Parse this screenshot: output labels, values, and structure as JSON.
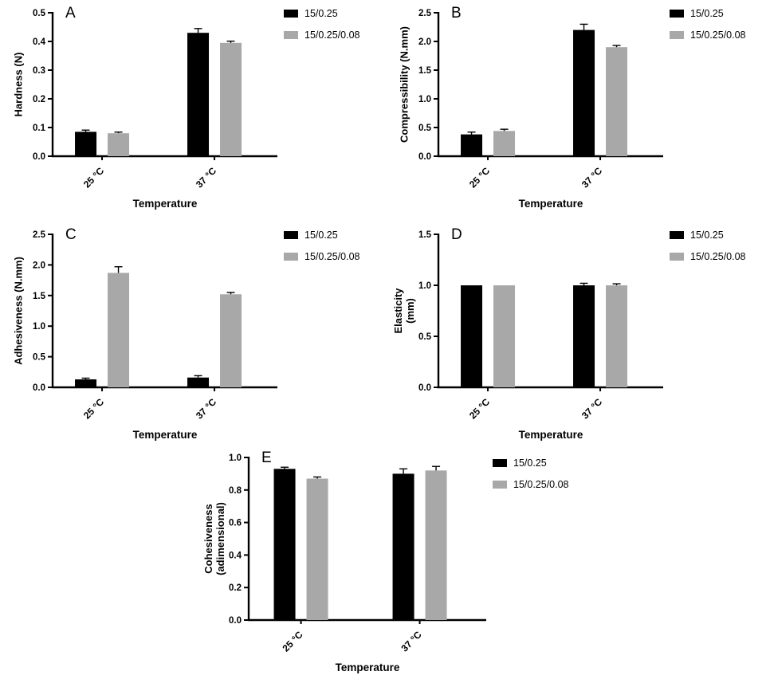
{
  "figure": {
    "background": "#ffffff",
    "series_colors": {
      "black": "#000000",
      "gray": "#a8a8a8"
    }
  },
  "chart_data": [
    {
      "id": "A",
      "type": "bar",
      "panel_label": "A",
      "title": "",
      "xlabel": "Temperature",
      "ylabel_lines": [
        "Hardness (N)"
      ],
      "ylim": [
        0,
        0.5
      ],
      "yticks": [
        "0.0",
        "0.1",
        "0.2",
        "0.3",
        "0.4",
        "0.5"
      ],
      "categories": [
        "25 °C",
        "37 °C"
      ],
      "legend_position": "right-top",
      "grid": false,
      "series": [
        {
          "name": "15/0.25",
          "color": "#000000",
          "values": [
            0.085,
            0.43
          ],
          "errors": [
            0.006,
            0.015
          ]
        },
        {
          "name": "15/0.25/0.08",
          "color": "#a8a8a8",
          "values": [
            0.08,
            0.395
          ],
          "errors": [
            0.004,
            0.006
          ]
        }
      ]
    },
    {
      "id": "B",
      "type": "bar",
      "panel_label": "B",
      "title": "",
      "xlabel": "Temperature",
      "ylabel_lines": [
        "Compressibility (N.mm)"
      ],
      "ylim": [
        0,
        2.5
      ],
      "yticks": [
        "0.0",
        "0.5",
        "1.0",
        "1.5",
        "2.0",
        "2.5"
      ],
      "categories": [
        "25 °C",
        "37 °C"
      ],
      "legend_position": "right-top",
      "grid": false,
      "series": [
        {
          "name": "15/0.25",
          "color": "#000000",
          "values": [
            0.38,
            2.2
          ],
          "errors": [
            0.04,
            0.1
          ]
        },
        {
          "name": "15/0.25/0.08",
          "color": "#a8a8a8",
          "values": [
            0.44,
            1.9
          ],
          "errors": [
            0.03,
            0.03
          ]
        }
      ]
    },
    {
      "id": "C",
      "type": "bar",
      "panel_label": "C",
      "title": "",
      "xlabel": "Temperature",
      "ylabel_lines": [
        "Adhesiveness (N.mm)"
      ],
      "ylim": [
        0,
        2.5
      ],
      "yticks": [
        "0.0",
        "0.5",
        "1.0",
        "1.5",
        "2.0",
        "2.5"
      ],
      "categories": [
        "25 °C",
        "37 °C"
      ],
      "legend_position": "right-top",
      "grid": false,
      "series": [
        {
          "name": "15/0.25",
          "color": "#000000",
          "values": [
            0.13,
            0.16
          ],
          "errors": [
            0.02,
            0.03
          ]
        },
        {
          "name": "15/0.25/0.08",
          "color": "#a8a8a8",
          "values": [
            1.87,
            1.52
          ],
          "errors": [
            0.1,
            0.03
          ]
        }
      ]
    },
    {
      "id": "D",
      "type": "bar",
      "panel_label": "D",
      "title": "",
      "xlabel": "Temperature",
      "ylabel_lines": [
        "Elasticity",
        "(mm)"
      ],
      "ylim": [
        0,
        1.5
      ],
      "yticks": [
        "0.0",
        "0.5",
        "1.0",
        "1.5"
      ],
      "categories": [
        "25 °C",
        "37 °C"
      ],
      "legend_position": "right-top",
      "grid": false,
      "series": [
        {
          "name": "15/0.25",
          "color": "#000000",
          "values": [
            1.0,
            1.0
          ],
          "errors": [
            0,
            0.02
          ]
        },
        {
          "name": "15/0.25/0.08",
          "color": "#a8a8a8",
          "values": [
            1.0,
            1.0
          ],
          "errors": [
            0,
            0.015
          ]
        }
      ]
    },
    {
      "id": "E",
      "type": "bar",
      "panel_label": "E",
      "title": "",
      "xlabel": "Temperature",
      "ylabel_lines": [
        "Cohesiveness",
        "(adimensional)"
      ],
      "ylim": [
        0,
        1.0
      ],
      "yticks": [
        "0.0",
        "0.2",
        "0.4",
        "0.6",
        "0.8",
        "1.0"
      ],
      "categories": [
        "25 °C",
        "37 °C"
      ],
      "legend_position": "right-top",
      "grid": false,
      "series": [
        {
          "name": "15/0.25",
          "color": "#000000",
          "values": [
            0.93,
            0.9
          ],
          "errors": [
            0.01,
            0.03
          ]
        },
        {
          "name": "15/0.25/0.08",
          "color": "#a8a8a8",
          "values": [
            0.87,
            0.92
          ],
          "errors": [
            0.01,
            0.025
          ]
        }
      ]
    }
  ]
}
